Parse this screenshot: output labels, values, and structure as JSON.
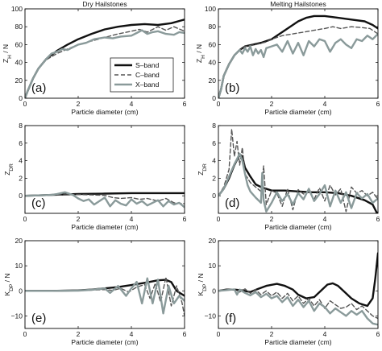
{
  "chart_data": [
    {
      "type": "line",
      "panel": "(a)",
      "title": "Dry Hailstones",
      "xlabel": "Particle diameter (cm)",
      "ylabel": "Z_H / N",
      "xlim": [
        0,
        6
      ],
      "ylim": [
        0,
        100
      ],
      "xticks": [
        0,
        2,
        4,
        6
      ],
      "yticks": [
        0,
        20,
        40,
        60,
        80,
        100
      ],
      "legend": {
        "position": "lower-right",
        "entries": [
          "S–band",
          "C–band",
          "X–band"
        ]
      },
      "series": [
        {
          "name": "S–band",
          "color": "#111111",
          "dash": "solid",
          "x": [
            0,
            0.1,
            0.3,
            0.5,
            0.8,
            1.2,
            1.6,
            2.0,
            2.5,
            3.0,
            3.5,
            4.0,
            4.5,
            5.0,
            5.5,
            6.0
          ],
          "y": [
            0,
            8,
            22,
            33,
            44,
            53,
            60,
            66,
            72,
            77,
            80,
            82,
            83,
            82,
            84,
            88
          ]
        },
        {
          "name": "C–band",
          "color": "#555555",
          "dash": "dashed",
          "x": [
            0,
            0.1,
            0.3,
            0.5,
            0.8,
            1.2,
            1.6,
            2.0,
            2.5,
            3.0,
            3.5,
            4.0,
            4.3,
            4.6,
            5.0,
            5.3,
            5.6,
            6.0
          ],
          "y": [
            0,
            8,
            22,
            33,
            43,
            50,
            55,
            60,
            64,
            68,
            72,
            75,
            77,
            74,
            80,
            76,
            80,
            75
          ]
        },
        {
          "name": "X–band",
          "color": "#8a9a9a",
          "dash": "solid",
          "x": [
            0,
            0.1,
            0.3,
            0.5,
            0.8,
            1.0,
            1.2,
            1.4,
            1.6,
            1.8,
            2.0,
            2.3,
            2.6,
            3.0,
            3.3,
            3.6,
            4.0,
            4.2,
            4.4,
            4.6,
            4.8,
            5.0,
            5.3,
            5.6,
            5.8,
            6.0
          ],
          "y": [
            0,
            8,
            22,
            33,
            44,
            50,
            52,
            55,
            54,
            57,
            60,
            62,
            66,
            68,
            67,
            69,
            70,
            73,
            76,
            72,
            74,
            75,
            72,
            71,
            74,
            73
          ]
        }
      ]
    },
    {
      "type": "line",
      "panel": "(b)",
      "title": "Melting Hailstones",
      "xlabel": "Particle diameter (cm)",
      "ylabel": "Z_H / N",
      "xlim": [
        0,
        6
      ],
      "ylim": [
        0,
        100
      ],
      "xticks": [
        0,
        2,
        4,
        6
      ],
      "yticks": [
        0,
        20,
        40,
        60,
        80,
        100
      ],
      "series": [
        {
          "name": "S–band",
          "color": "#111111",
          "dash": "solid",
          "x": [
            0,
            0.1,
            0.2,
            0.4,
            0.6,
            0.8,
            1.0,
            1.3,
            1.6,
            2.0,
            2.5,
            3.0,
            3.3,
            3.6,
            4.0,
            4.5,
            5.0,
            5.5,
            5.8,
            6.0
          ],
          "y": [
            0,
            10,
            25,
            38,
            48,
            54,
            58,
            60,
            62,
            66,
            76,
            86,
            90,
            92,
            92,
            90,
            88,
            86,
            82,
            78
          ]
        },
        {
          "name": "C–band",
          "color": "#555555",
          "dash": "dashed",
          "x": [
            0,
            0.1,
            0.2,
            0.4,
            0.6,
            0.8,
            1.0,
            1.4,
            1.8,
            2.0,
            2.4,
            2.8,
            3.2,
            3.6,
            4.0,
            4.3,
            4.6,
            5.0,
            5.4,
            5.7,
            6.0
          ],
          "y": [
            0,
            10,
            25,
            38,
            48,
            54,
            58,
            60,
            63,
            66,
            70,
            72,
            74,
            76,
            78,
            80,
            78,
            80,
            79,
            78,
            72
          ]
        },
        {
          "name": "X–band",
          "color": "#8a9a9a",
          "dash": "solid",
          "x": [
            0,
            0.1,
            0.2,
            0.4,
            0.6,
            0.8,
            0.9,
            1.0,
            1.1,
            1.2,
            1.3,
            1.4,
            1.5,
            1.6,
            1.7,
            1.8,
            2.0,
            2.2,
            2.4,
            2.6,
            2.8,
            3.0,
            3.2,
            3.4,
            3.6,
            3.8,
            4.0,
            4.2,
            4.4,
            4.6,
            4.8,
            5.0,
            5.2,
            5.4,
            5.6,
            5.8,
            6.0
          ],
          "y": [
            0,
            10,
            25,
            38,
            48,
            54,
            50,
            56,
            52,
            58,
            48,
            55,
            50,
            54,
            46,
            56,
            58,
            60,
            52,
            64,
            50,
            62,
            48,
            64,
            58,
            66,
            64,
            52,
            62,
            66,
            60,
            56,
            66,
            64,
            70,
            66,
            72
          ]
        }
      ]
    },
    {
      "type": "line",
      "panel": "(c)",
      "xlabel": "Particle diameter (cm)",
      "ylabel": "Z_DR",
      "xlim": [
        0,
        6
      ],
      "ylim": [
        -2,
        8
      ],
      "xticks": [
        0,
        2,
        4,
        6
      ],
      "yticks": [
        0,
        2,
        4,
        6,
        8
      ],
      "series": [
        {
          "name": "S–band",
          "color": "#111111",
          "dash": "solid",
          "x": [
            0,
            0.5,
            1.0,
            2.0,
            3.0,
            4.0,
            5.0,
            6.0
          ],
          "y": [
            0,
            0.05,
            0.1,
            0.2,
            0.25,
            0.3,
            0.3,
            0.3
          ]
        },
        {
          "name": "C–band",
          "color": "#555555",
          "dash": "dashed",
          "x": [
            0,
            0.5,
            1.0,
            1.5,
            2.0,
            2.5,
            3.0,
            3.3,
            3.6,
            4.0,
            4.3,
            4.6,
            5.0,
            5.3,
            5.6,
            6.0
          ],
          "y": [
            0,
            0.05,
            0.1,
            0.1,
            0.15,
            0.1,
            0.05,
            -0.2,
            -0.3,
            -0.2,
            -0.4,
            -0.3,
            -0.6,
            -0.3,
            -0.8,
            -0.9
          ]
        },
        {
          "name": "X–band",
          "color": "#8a9a9a",
          "dash": "solid",
          "x": [
            0,
            0.5,
            1.0,
            1.2,
            1.5,
            1.8,
            2.0,
            2.2,
            2.4,
            2.6,
            2.8,
            3.0,
            3.2,
            3.4,
            3.6,
            3.8,
            4.0,
            4.2,
            4.4,
            4.6,
            4.8,
            5.0,
            5.2,
            5.4,
            5.6,
            5.8,
            6.0
          ],
          "y": [
            0,
            0.05,
            0.1,
            0.2,
            0.4,
            0.1,
            -0.3,
            -0.6,
            -0.4,
            -1.0,
            -0.6,
            -0.2,
            -1.2,
            -0.5,
            -0.9,
            -1.1,
            -0.4,
            -0.9,
            -0.6,
            -1.1,
            -0.8,
            -0.5,
            -1.2,
            -0.6,
            -1.0,
            -0.8,
            -1.3
          ]
        }
      ]
    },
    {
      "type": "line",
      "panel": "(d)",
      "xlabel": "Particle diameter (cm)",
      "ylabel": "Z_DR",
      "xlim": [
        0,
        6
      ],
      "ylim": [
        -2,
        8
      ],
      "xticks": [
        0,
        2,
        4,
        6
      ],
      "yticks": [
        0,
        2,
        4,
        6,
        8
      ],
      "series": [
        {
          "name": "S–band",
          "color": "#111111",
          "dash": "solid",
          "x": [
            0,
            0.2,
            0.4,
            0.6,
            0.8,
            0.9,
            1.0,
            1.2,
            1.4,
            1.6,
            1.8,
            2.0,
            2.5,
            3.0,
            3.5,
            4.0,
            4.5,
            5.0,
            5.5,
            5.8,
            6.0
          ],
          "y": [
            0,
            0.8,
            2.0,
            3.5,
            4.7,
            4.5,
            3.2,
            2.2,
            1.3,
            1.0,
            0.8,
            0.6,
            0.6,
            0.5,
            0.4,
            0.4,
            0.3,
            0.0,
            -0.5,
            -1.0,
            -2.2
          ]
        },
        {
          "name": "C–band",
          "color": "#555555",
          "dash": "dashed",
          "x": [
            0,
            0.2,
            0.4,
            0.5,
            0.6,
            0.7,
            0.8,
            0.9,
            1.0,
            1.2,
            1.4,
            1.6,
            1.7,
            1.8,
            2.0,
            2.2,
            2.4,
            2.6,
            2.8,
            3.0,
            3.2,
            3.4,
            3.6,
            3.8,
            4.0,
            4.2,
            4.4,
            4.6,
            4.8,
            5.0,
            5.2,
            5.4,
            5.6,
            5.8,
            6.0
          ],
          "y": [
            0,
            1.0,
            3.0,
            7.6,
            4.5,
            6.2,
            3.5,
            5.5,
            2.5,
            1.5,
            1.0,
            0.5,
            3.4,
            -1.0,
            0.6,
            0.3,
            -1.2,
            0.8,
            -1.6,
            0.7,
            0.2,
            0.5,
            -0.4,
            0.9,
            -0.6,
            1.2,
            0.1,
            0.8,
            -1.8,
            1.0,
            0.3,
            0.6,
            0.0,
            0.4,
            -0.4
          ]
        },
        {
          "name": "X–band",
          "color": "#8a9a9a",
          "dash": "solid",
          "x": [
            0,
            0.2,
            0.4,
            0.6,
            0.8,
            0.9,
            1.0,
            1.1,
            1.2,
            1.4,
            1.6,
            1.65,
            1.7,
            1.8,
            2.0,
            2.2,
            2.4,
            2.6,
            2.8,
            3.0,
            3.2,
            3.4,
            3.6,
            3.8,
            4.0,
            4.2,
            4.4,
            4.6,
            4.8,
            5.0,
            5.2,
            5.4,
            5.6,
            5.8,
            6.0
          ],
          "y": [
            0,
            0.8,
            2.2,
            3.6,
            4.8,
            4.0,
            2.5,
            1.2,
            0.5,
            -0.2,
            -0.8,
            2.6,
            -0.5,
            -1.8,
            -0.8,
            0.4,
            -0.6,
            0.2,
            -1.0,
            0.3,
            -0.4,
            0.8,
            -0.6,
            0.2,
            1.2,
            -1.2,
            0.6,
            -0.8,
            0.4,
            -1.4,
            0.3,
            -0.3,
            0.2,
            -0.8,
            -0.3
          ]
        }
      ]
    },
    {
      "type": "line",
      "panel": "(e)",
      "xlabel": "Particle diameter (cm)",
      "ylabel": "K_DP / N",
      "xlim": [
        0,
        6
      ],
      "ylim": [
        -15,
        20
      ],
      "xticks": [
        0,
        2,
        4,
        6
      ],
      "yticks": [
        -10,
        0,
        10,
        20
      ],
      "series": [
        {
          "name": "S–band",
          "color": "#111111",
          "dash": "solid",
          "x": [
            0,
            1.0,
            2.0,
            2.5,
            3.0,
            3.5,
            4.0,
            4.5,
            5.0,
            5.3,
            5.5,
            5.7,
            6.0
          ],
          "y": [
            0,
            0,
            0.2,
            0.5,
            1.0,
            1.5,
            2.3,
            3.2,
            4.2,
            4.4,
            3.5,
            0.0,
            -2.0
          ]
        },
        {
          "name": "C–band",
          "color": "#555555",
          "dash": "dashed",
          "x": [
            0,
            1.0,
            2.0,
            2.5,
            3.0,
            3.3,
            3.6,
            3.9,
            4.2,
            4.5,
            4.7,
            4.9,
            5.1,
            5.3,
            5.5,
            5.7,
            5.9,
            6.0
          ],
          "y": [
            0,
            0,
            0.1,
            0.3,
            0.5,
            0.2,
            1.0,
            -0.5,
            1.5,
            2.5,
            -3.0,
            3.0,
            -4.5,
            5.5,
            -6.0,
            2.0,
            -4.5,
            -10.0
          ]
        },
        {
          "name": "X–band",
          "color": "#8a9a9a",
          "dash": "solid",
          "x": [
            0,
            1.0,
            2.0,
            2.5,
            3.0,
            3.2,
            3.5,
            3.8,
            4.0,
            4.2,
            4.4,
            4.6,
            4.8,
            5.0,
            5.2,
            5.4,
            5.6,
            5.8,
            6.0
          ],
          "y": [
            0,
            0,
            0.1,
            0.4,
            1.0,
            -0.8,
            2.0,
            -2.0,
            1.0,
            3.6,
            -5.0,
            5.0,
            -5.0,
            4.5,
            -9.0,
            2.0,
            -5.0,
            -2.0,
            -4.0
          ]
        }
      ]
    },
    {
      "type": "line",
      "panel": "(f)",
      "xlabel": "Particle diameter (cm)",
      "ylabel": "K_DP / N",
      "xlim": [
        0,
        6
      ],
      "ylim": [
        -15,
        20
      ],
      "xticks": [
        0,
        2,
        4,
        6
      ],
      "yticks": [
        -10,
        0,
        10,
        20
      ],
      "series": [
        {
          "name": "S–band",
          "color": "#111111",
          "dash": "solid",
          "x": [
            0,
            0.3,
            0.6,
            0.9,
            1.2,
            1.5,
            1.8,
            2.0,
            2.2,
            2.5,
            2.8,
            3.0,
            3.3,
            3.6,
            3.9,
            4.1,
            4.3,
            4.5,
            4.8,
            5.0,
            5.3,
            5.6,
            5.8,
            5.9,
            6.0
          ],
          "y": [
            0,
            0.5,
            0.5,
            0.2,
            -0.5,
            0.8,
            2.0,
            2.4,
            2.8,
            2.0,
            0.5,
            -1.5,
            -3.0,
            -2.5,
            0.5,
            2.5,
            3.0,
            2.0,
            -1.0,
            -3.0,
            -5.0,
            -6.0,
            -3.0,
            5.0,
            15.0
          ]
        },
        {
          "name": "C–band",
          "color": "#555555",
          "dash": "dashed",
          "x": [
            0,
            0.3,
            0.6,
            0.8,
            1.0,
            1.2,
            1.4,
            1.6,
            1.8,
            2.0,
            2.2,
            2.4,
            2.6,
            2.8,
            3.0,
            3.2,
            3.4,
            3.6,
            3.8,
            4.0,
            4.2,
            4.4,
            4.6,
            4.8,
            5.0,
            5.2,
            5.4,
            5.6,
            5.8,
            6.0
          ],
          "y": [
            0,
            0.3,
            0.6,
            -0.5,
            0.8,
            -1.0,
            0.5,
            -1.5,
            0.0,
            -2.0,
            -0.5,
            -3.0,
            -1.0,
            -4.0,
            -2.0,
            -5.0,
            -3.0,
            -6.0,
            -3.5,
            -7.0,
            -4.0,
            -5.5,
            -7.0,
            -6.5,
            -5.0,
            -7.5,
            -6.0,
            -8.0,
            -10.0,
            -11.0
          ]
        },
        {
          "name": "X–band",
          "color": "#8a9a9a",
          "dash": "solid",
          "x": [
            0,
            0.3,
            0.6,
            0.7,
            0.8,
            1.0,
            1.2,
            1.4,
            1.6,
            1.8,
            2.0,
            2.2,
            2.4,
            2.6,
            2.8,
            3.0,
            3.2,
            3.4,
            3.6,
            3.8,
            4.0,
            4.2,
            4.4,
            4.6,
            4.8,
            5.0,
            5.2,
            5.4,
            5.6,
            5.8,
            6.0
          ],
          "y": [
            0,
            0.3,
            0.6,
            -1.5,
            0.5,
            -0.8,
            -1.8,
            -0.5,
            -2.5,
            -1.2,
            -3.0,
            -2.0,
            -4.5,
            -2.5,
            -6.0,
            -3.5,
            -6.5,
            -4.0,
            -8.0,
            -5.0,
            -6.5,
            -9.0,
            -7.0,
            -8.5,
            -10.0,
            -8.0,
            -9.5,
            -8.0,
            -11.0,
            -13.0,
            -13.5
          ]
        }
      ]
    }
  ]
}
